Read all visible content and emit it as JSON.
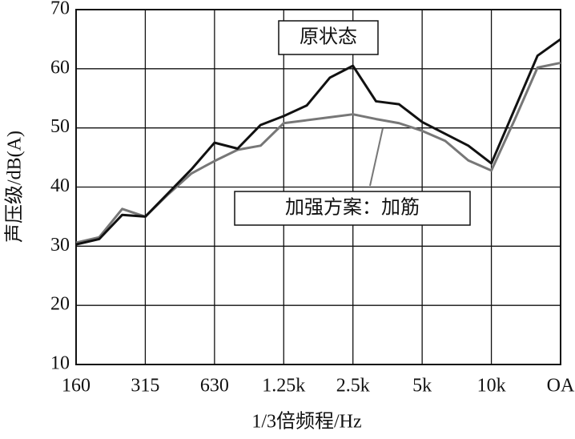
{
  "chart_data": {
    "type": "line",
    "xlabel": "1/3倍频程/Hz",
    "ylabel": "声压级/dB(A)",
    "categories": [
      "160",
      null,
      null,
      "315",
      null,
      null,
      "630",
      null,
      null,
      "1.25k",
      null,
      null,
      "2.5k",
      null,
      null,
      "5k",
      null,
      null,
      "10k",
      null,
      null,
      "OA"
    ],
    "series": [
      {
        "name": "原状态",
        "color": "#111111",
        "values": [
          30.3,
          31.2,
          35.3,
          35,
          39,
          43,
          47.5,
          46.5,
          50.5,
          52,
          53.8,
          58.5,
          60.5,
          54.5,
          54,
          51,
          49,
          47,
          44,
          53.1,
          62.2,
          65
        ]
      },
      {
        "name": "加强方案：加筋",
        "color": "#777777",
        "values": [
          30.6,
          31.5,
          36.3,
          35,
          38.8,
          42.3,
          44.4,
          46.3,
          47,
          50.8,
          51.3,
          51.8,
          52.3,
          51.5,
          50.8,
          49.5,
          47.8,
          44.5,
          42.8,
          51.3,
          60.2,
          61
        ]
      }
    ],
    "ylim": [
      10,
      70
    ],
    "yticks": [
      10,
      20,
      30,
      40,
      50,
      60,
      70
    ],
    "grid": true
  }
}
